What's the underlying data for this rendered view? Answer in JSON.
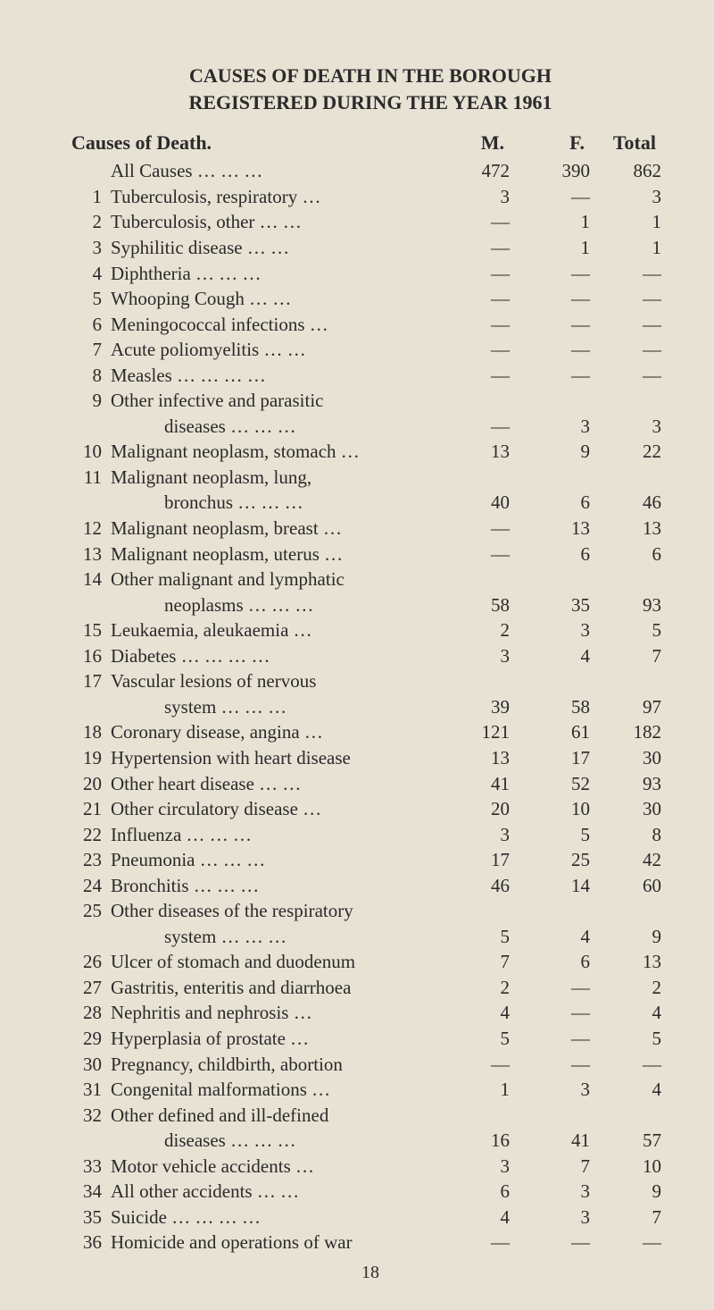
{
  "title_line1": "CAUSES OF DEATH IN THE BOROUGH",
  "title_line2": "REGISTERED DURING THE YEAR 1961",
  "header": {
    "label": "Causes of Death.",
    "m": "M.",
    "f": "F.",
    "total": "Total"
  },
  "rows": [
    {
      "num": "",
      "cause": "All Causes    …    …    …",
      "m": "472",
      "f": "390",
      "t": "862"
    },
    {
      "num": "1",
      "cause": "Tuberculosis, respiratory    …",
      "m": "3",
      "f": "—",
      "t": "3"
    },
    {
      "num": "2",
      "cause": "Tuberculosis, other    …    …",
      "m": "—",
      "f": "1",
      "t": "1"
    },
    {
      "num": "3",
      "cause": "Syphilitic disease    …    …",
      "m": "—",
      "f": "1",
      "t": "1"
    },
    {
      "num": "4",
      "cause": "Diphtheria    …    …    …",
      "m": "—",
      "f": "—",
      "t": "—"
    },
    {
      "num": "5",
      "cause": "Whooping Cough    …    …",
      "m": "—",
      "f": "—",
      "t": "—"
    },
    {
      "num": "6",
      "cause": "Meningococcal infections    …",
      "m": "—",
      "f": "—",
      "t": "—"
    },
    {
      "num": "7",
      "cause": "Acute poliomyelitis    …    …",
      "m": "—",
      "f": "—",
      "t": "—"
    },
    {
      "num": "8",
      "cause": "Measles    …    …    …    …",
      "m": "—",
      "f": "—",
      "t": "—"
    },
    {
      "num": "9",
      "cause": "Other infective and parasitic",
      "m": "",
      "f": "",
      "t": ""
    },
    {
      "num": "",
      "cause": "diseases    …    …    …",
      "indent": true,
      "m": "—",
      "f": "3",
      "t": "3"
    },
    {
      "num": "10",
      "cause": "Malignant neoplasm, stomach …",
      "m": "13",
      "f": "9",
      "t": "22"
    },
    {
      "num": "11",
      "cause": "Malignant neoplasm, lung,",
      "m": "",
      "f": "",
      "t": ""
    },
    {
      "num": "",
      "cause": "bronchus    …    …    …",
      "indent": true,
      "m": "40",
      "f": "6",
      "t": "46"
    },
    {
      "num": "12",
      "cause": "Malignant neoplasm, breast    …",
      "m": "—",
      "f": "13",
      "t": "13"
    },
    {
      "num": "13",
      "cause": "Malignant neoplasm, uterus    …",
      "m": "—",
      "f": "6",
      "t": "6"
    },
    {
      "num": "14",
      "cause": "Other malignant and lymphatic",
      "m": "",
      "f": "",
      "t": ""
    },
    {
      "num": "",
      "cause": "neoplasms    …    …    …",
      "indent": true,
      "m": "58",
      "f": "35",
      "t": "93"
    },
    {
      "num": "15",
      "cause": "Leukaemia, aleukaemia    …",
      "m": "2",
      "f": "3",
      "t": "5"
    },
    {
      "num": "16",
      "cause": "Diabetes    …    …    …    …",
      "m": "3",
      "f": "4",
      "t": "7"
    },
    {
      "num": "17",
      "cause": "Vascular lesions of nervous",
      "m": "",
      "f": "",
      "t": ""
    },
    {
      "num": "",
      "cause": "system    …    …    …",
      "indent": true,
      "m": "39",
      "f": "58",
      "t": "97"
    },
    {
      "num": "18",
      "cause": "Coronary disease, angina    …",
      "m": "121",
      "f": "61",
      "t": "182"
    },
    {
      "num": "19",
      "cause": "Hypertension with heart disease",
      "m": "13",
      "f": "17",
      "t": "30"
    },
    {
      "num": "20",
      "cause": "Other heart disease    …    …",
      "m": "41",
      "f": "52",
      "t": "93"
    },
    {
      "num": "21",
      "cause": "Other circulatory disease    …",
      "m": "20",
      "f": "10",
      "t": "30"
    },
    {
      "num": "22",
      "cause": "Influenza    …    …    …",
      "m": "3",
      "f": "5",
      "t": "8"
    },
    {
      "num": "23",
      "cause": "Pneumonia    …    …    …",
      "m": "17",
      "f": "25",
      "t": "42"
    },
    {
      "num": "24",
      "cause": "Bronchitis    …    …    …",
      "m": "46",
      "f": "14",
      "t": "60"
    },
    {
      "num": "25",
      "cause": "Other diseases of the respiratory",
      "m": "",
      "f": "",
      "t": ""
    },
    {
      "num": "",
      "cause": "system    …    …    …",
      "indent": true,
      "m": "5",
      "f": "4",
      "t": "9"
    },
    {
      "num": "26",
      "cause": "Ulcer of stomach and duodenum",
      "m": "7",
      "f": "6",
      "t": "13"
    },
    {
      "num": "27",
      "cause": "Gastritis, enteritis and diarrhoea",
      "m": "2",
      "f": "—",
      "t": "2"
    },
    {
      "num": "28",
      "cause": "Nephritis and nephrosis    …",
      "m": "4",
      "f": "—",
      "t": "4"
    },
    {
      "num": "29",
      "cause": "Hyperplasia of prostate    …",
      "m": "5",
      "f": "—",
      "t": "5"
    },
    {
      "num": "30",
      "cause": "Pregnancy, childbirth, abortion",
      "m": "—",
      "f": "—",
      "t": "—"
    },
    {
      "num": "31",
      "cause": "Congenital malformations    …",
      "m": "1",
      "f": "3",
      "t": "4"
    },
    {
      "num": "32",
      "cause": "Other defined and ill-defined",
      "m": "",
      "f": "",
      "t": ""
    },
    {
      "num": "",
      "cause": "diseases    …    …    …",
      "indent": true,
      "m": "16",
      "f": "41",
      "t": "57"
    },
    {
      "num": "33",
      "cause": "Motor vehicle accidents    …",
      "m": "3",
      "f": "7",
      "t": "10"
    },
    {
      "num": "34",
      "cause": "All other accidents    …    …",
      "m": "6",
      "f": "3",
      "t": "9"
    },
    {
      "num": "35",
      "cause": "Suicide    …    …    …    …",
      "m": "4",
      "f": "3",
      "t": "7"
    },
    {
      "num": "36",
      "cause": "Homicide and operations of war",
      "m": "—",
      "f": "—",
      "t": "—"
    }
  ],
  "page_number": "18"
}
